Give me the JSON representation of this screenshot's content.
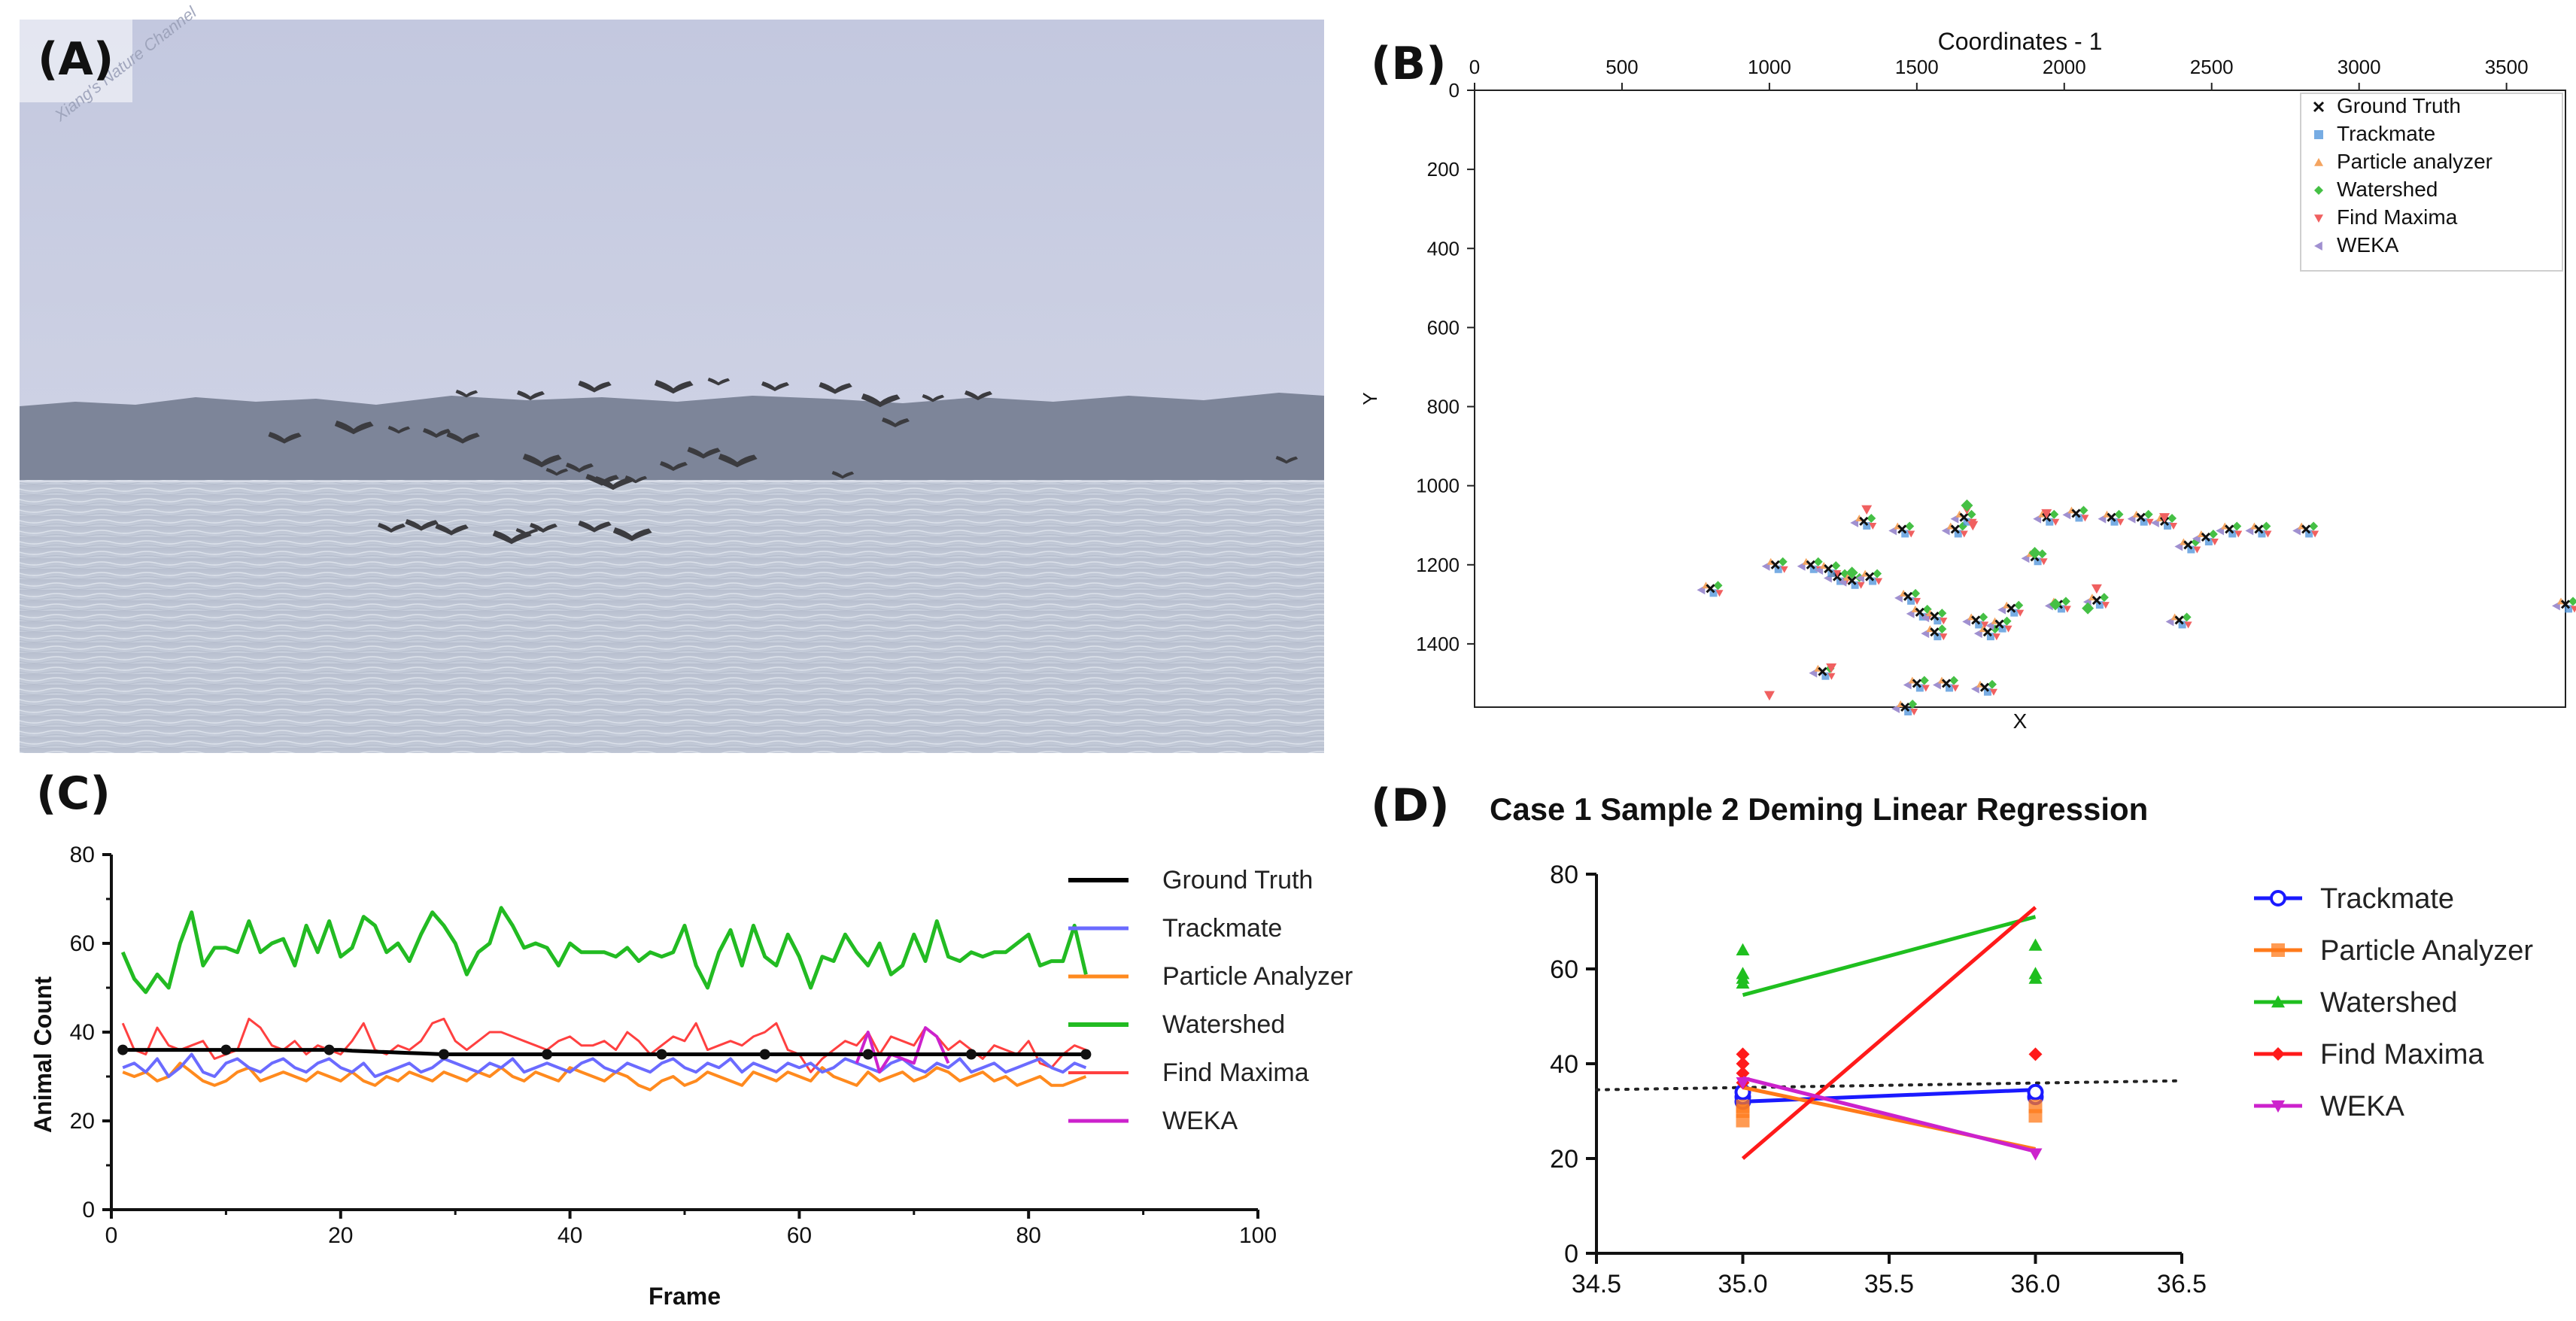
{
  "panels": {
    "a": "(A)",
    "b": "(B)",
    "c": "(C)",
    "d": "(D)"
  },
  "photo": {
    "watermark": "Xiang's Nature Channel",
    "colors": {
      "sky_top": "#c3c8df",
      "sky_bottom": "#d1d5e6",
      "treeline": "#7a8396",
      "water": "#c8cedb",
      "bird": "#3b3b3f"
    }
  },
  "chart_data": [
    {
      "id": "B",
      "type": "scatter",
      "title": "Coordinates - 1",
      "xlabel": "X",
      "ylabel": "Y",
      "xlim": [
        0,
        3700
      ],
      "ylim": [
        1560,
        0
      ],
      "x_ticks": [
        0,
        500,
        1000,
        1500,
        2000,
        2500,
        3000,
        3500
      ],
      "y_ticks": [
        0,
        200,
        400,
        600,
        800,
        1000,
        1200,
        1400
      ],
      "legend": [
        "Ground Truth",
        "Trackmate",
        "Particle analyzer",
        "Watershed",
        "Find Maxima",
        "WEKA"
      ],
      "legend_position": "top-right",
      "ground_truth": [
        [
          1020,
          1200
        ],
        [
          1140,
          1200
        ],
        [
          1230,
          1230
        ],
        [
          1280,
          1240
        ],
        [
          1320,
          1090
        ],
        [
          1340,
          1230
        ],
        [
          1450,
          1110
        ],
        [
          1470,
          1280
        ],
        [
          1510,
          1320
        ],
        [
          1560,
          1330
        ],
        [
          1630,
          1110
        ],
        [
          1660,
          1080
        ],
        [
          1700,
          1340
        ],
        [
          1740,
          1370
        ],
        [
          1780,
          1350
        ],
        [
          1820,
          1310
        ],
        [
          1900,
          1180
        ],
        [
          1940,
          1080
        ],
        [
          1980,
          1300
        ],
        [
          2040,
          1070
        ],
        [
          2110,
          1290
        ],
        [
          2160,
          1080
        ],
        [
          2260,
          1080
        ],
        [
          2340,
          1090
        ],
        [
          2390,
          1340
        ],
        [
          2420,
          1150
        ],
        [
          2480,
          1130
        ],
        [
          2560,
          1110
        ],
        [
          2660,
          1110
        ],
        [
          2820,
          1110
        ],
        [
          1500,
          1500
        ],
        [
          1600,
          1500
        ],
        [
          1730,
          1510
        ],
        [
          1180,
          1470
        ],
        [
          800,
          1260
        ],
        [
          1200,
          1210
        ],
        [
          3700,
          1300
        ],
        [
          1460,
          1560
        ],
        [
          1560,
          1370
        ]
      ],
      "find_maxima": [
        [
          1330,
          1060
        ],
        [
          1670,
          1060
        ],
        [
          1000,
          1530
        ],
        [
          1210,
          1460
        ],
        [
          2110,
          1260
        ],
        [
          1690,
          1100
        ],
        [
          1940,
          1070
        ],
        [
          2340,
          1080
        ]
      ],
      "watershed": [
        [
          1670,
          1050
        ],
        [
          1900,
          1170
        ],
        [
          1280,
          1220
        ],
        [
          1970,
          1300
        ],
        [
          2080,
          1310
        ]
      ]
    },
    {
      "id": "C",
      "type": "line",
      "xlabel": "Frame",
      "ylabel": "Animal Count",
      "xlim": [
        0,
        100
      ],
      "ylim": [
        0,
        80
      ],
      "x_ticks": [
        0,
        20,
        40,
        60,
        80,
        100
      ],
      "y_ticks": [
        0,
        20,
        40,
        60,
        80
      ],
      "x": [
        1,
        2,
        3,
        4,
        5,
        6,
        7,
        8,
        9,
        10,
        11,
        12,
        13,
        14,
        15,
        16,
        17,
        18,
        19,
        20,
        21,
        22,
        23,
        24,
        25,
        26,
        27,
        28,
        29,
        30,
        31,
        32,
        33,
        34,
        35,
        36,
        37,
        38,
        39,
        40,
        41,
        42,
        43,
        44,
        45,
        46,
        47,
        48,
        49,
        50,
        51,
        52,
        53,
        54,
        55,
        56,
        57,
        58,
        59,
        60,
        61,
        62,
        63,
        64,
        65,
        66,
        67,
        68,
        69,
        70,
        71,
        72,
        73,
        74,
        75,
        76,
        77,
        78,
        79,
        80,
        81,
        82,
        83,
        84,
        85
      ],
      "series": [
        {
          "name": "Ground Truth",
          "color": "#000000",
          "width": 5,
          "values": [
            36,
            36,
            36,
            36,
            36,
            36,
            36,
            36,
            36,
            36,
            36,
            36,
            36,
            36,
            36,
            36,
            36,
            36,
            36,
            36,
            35.8,
            35.7,
            35.6,
            35.5,
            35.4,
            35.3,
            35.2,
            35.1,
            35,
            35,
            35,
            35,
            35,
            35,
            35,
            35,
            35,
            35,
            35,
            35,
            35,
            35,
            35,
            35,
            35,
            35,
            35,
            35,
            35,
            35,
            35,
            35,
            35,
            35,
            35,
            35,
            35,
            35,
            35,
            35,
            35,
            35,
            35,
            35,
            35,
            35,
            35,
            35,
            35,
            35,
            35,
            35,
            35,
            35,
            35,
            35,
            35,
            35,
            35,
            35,
            35,
            35,
            35,
            35,
            35
          ],
          "marker_x": [
            1,
            10,
            19,
            29,
            38,
            48,
            57,
            66,
            75,
            85
          ],
          "marker_values": [
            36,
            36,
            36,
            35,
            35,
            35,
            35,
            35,
            35,
            35
          ]
        },
        {
          "name": "Trackmate",
          "color": "#6b6bff",
          "width": 4,
          "values": [
            32,
            33,
            31,
            34,
            30,
            32,
            35,
            31,
            30,
            33,
            34,
            32,
            31,
            33,
            34,
            32,
            31,
            33,
            34,
            32,
            31,
            33,
            30,
            31,
            32,
            33,
            31,
            32,
            34,
            33,
            32,
            31,
            33,
            32,
            34,
            31,
            32,
            33,
            32,
            31,
            33,
            34,
            32,
            31,
            33,
            32,
            31,
            33,
            34,
            32,
            31,
            33,
            32,
            34,
            31,
            33,
            32,
            31,
            33,
            32,
            33,
            31,
            32,
            34,
            33,
            32,
            31,
            33,
            34,
            32,
            31,
            33,
            32,
            34,
            31,
            32,
            33,
            31,
            32,
            33,
            34,
            32,
            31,
            33,
            32
          ]
        },
        {
          "name": "Particle Analyzer",
          "color": "#ff8a1e",
          "width": 4,
          "values": [
            31,
            30,
            31,
            29,
            30,
            33,
            31,
            29,
            28,
            29,
            31,
            32,
            29,
            30,
            31,
            30,
            29,
            31,
            30,
            29,
            31,
            29,
            28,
            30,
            29,
            31,
            30,
            29,
            31,
            30,
            29,
            31,
            30,
            32,
            30,
            29,
            31,
            30,
            29,
            32,
            31,
            30,
            29,
            31,
            30,
            28,
            27,
            29,
            30,
            28,
            29,
            31,
            30,
            29,
            28,
            31,
            30,
            29,
            31,
            30,
            29,
            32,
            30,
            29,
            28,
            31,
            29,
            30,
            31,
            29,
            30,
            32,
            31,
            29,
            30,
            31,
            29,
            30,
            28,
            29,
            30,
            28,
            28,
            29,
            30
          ]
        },
        {
          "name": "Watershed",
          "color": "#22bb22",
          "width": 5,
          "values": [
            58,
            52,
            49,
            53,
            50,
            60,
            67,
            55,
            59,
            59,
            58,
            65,
            58,
            60,
            61,
            55,
            64,
            58,
            65,
            57,
            59,
            66,
            64,
            58,
            60,
            56,
            62,
            67,
            64,
            60,
            53,
            58,
            60,
            68,
            64,
            59,
            60,
            59,
            55,
            60,
            58,
            58,
            58,
            57,
            59,
            56,
            58,
            57,
            58,
            64,
            55,
            50,
            58,
            63,
            55,
            64,
            57,
            55,
            62,
            57,
            50,
            57,
            56,
            62,
            58,
            55,
            60,
            53,
            55,
            62,
            56,
            65,
            57,
            56,
            58,
            57,
            58,
            58,
            60,
            62,
            55,
            56,
            56,
            64,
            53
          ]
        },
        {
          "name": "Find Maxima",
          "color": "#ff4040",
          "width": 3,
          "values": [
            42,
            36,
            35,
            41,
            37,
            36,
            37,
            38,
            34,
            35,
            36,
            43,
            41,
            37,
            36,
            38,
            35,
            37,
            36,
            35,
            38,
            42,
            36,
            35,
            37,
            36,
            38,
            42,
            43,
            38,
            36,
            38,
            40,
            40,
            39,
            38,
            37,
            36,
            38,
            39,
            37,
            37,
            38,
            36,
            40,
            38,
            35,
            37,
            39,
            38,
            42,
            36,
            37,
            38,
            37,
            39,
            40,
            42,
            36,
            35,
            31,
            34,
            36,
            38,
            37,
            40,
            35,
            39,
            38,
            37,
            41,
            39,
            36,
            38,
            36,
            34,
            37,
            36,
            35,
            38,
            33,
            32,
            35,
            37,
            36
          ]
        },
        {
          "name": "WEKA",
          "color": "#cc22cc",
          "width": 4,
          "values": [
            null,
            null,
            null,
            null,
            null,
            null,
            null,
            null,
            null,
            null,
            null,
            null,
            null,
            null,
            null,
            null,
            null,
            null,
            null,
            null,
            null,
            null,
            null,
            null,
            null,
            null,
            null,
            null,
            null,
            null,
            null,
            null,
            null,
            null,
            null,
            null,
            null,
            null,
            null,
            null,
            null,
            null,
            null,
            null,
            null,
            null,
            null,
            null,
            null,
            null,
            null,
            null,
            null,
            null,
            null,
            null,
            null,
            null,
            null,
            null,
            null,
            null,
            null,
            null,
            33,
            40,
            31,
            35,
            34,
            33,
            41,
            39,
            33,
            null,
            null,
            null,
            null,
            null,
            null,
            null,
            null,
            null,
            null,
            null,
            null
          ]
        }
      ]
    },
    {
      "id": "D",
      "type": "scatter",
      "title": "Case 1 Sample 2 Deming Linear Regression",
      "xlim": [
        34.5,
        36.5
      ],
      "ylim": [
        0,
        80
      ],
      "x_ticks": [
        34.5,
        35.0,
        35.5,
        36.0,
        36.5
      ],
      "y_ticks": [
        0,
        20,
        40,
        60,
        80
      ],
      "legend_position": "right",
      "identity_line": [
        [
          34.5,
          34.5
        ],
        [
          36.5,
          36.4
        ]
      ],
      "series": [
        {
          "name": "Trackmate",
          "color": "#1a1aff",
          "marker": "circle",
          "points": [
            [
              35,
              32
            ],
            [
              35,
              33
            ],
            [
              35,
              34
            ],
            [
              36,
              33
            ],
            [
              36,
              34
            ]
          ],
          "fit": [
            [
              35,
              32
            ],
            [
              36,
              34.5
            ]
          ]
        },
        {
          "name": "Particle Analyzer",
          "color": "#ff7a1a",
          "marker": "square",
          "points": [
            [
              35,
              28
            ],
            [
              35,
              30
            ],
            [
              35,
              31
            ],
            [
              36,
              29
            ],
            [
              36,
              31
            ]
          ],
          "fit": [
            [
              35,
              35
            ],
            [
              36,
              22
            ]
          ]
        },
        {
          "name": "Watershed",
          "color": "#1fbf1f",
          "marker": "triangle",
          "points": [
            [
              35,
              64
            ],
            [
              35,
              59
            ],
            [
              35,
              58
            ],
            [
              35,
              57
            ],
            [
              36,
              65
            ],
            [
              36,
              59
            ],
            [
              36,
              58
            ]
          ],
          "fit": [
            [
              35,
              54.5
            ],
            [
              36,
              71
            ]
          ]
        },
        {
          "name": "Find Maxima",
          "color": "#ff1a1a",
          "marker": "diamond",
          "points": [
            [
              35,
              42
            ],
            [
              35,
              40
            ],
            [
              35,
              38
            ],
            [
              35,
              36
            ],
            [
              36,
              42
            ]
          ],
          "fit": [
            [
              35,
              20
            ],
            [
              36,
              73
            ]
          ]
        },
        {
          "name": "WEKA",
          "color": "#cc22cc",
          "marker": "triangle-down",
          "points": [
            [
              35,
              36
            ],
            [
              36,
              21
            ]
          ],
          "fit": [
            [
              35,
              37
            ],
            [
              36,
              21.5
            ]
          ]
        }
      ]
    }
  ]
}
